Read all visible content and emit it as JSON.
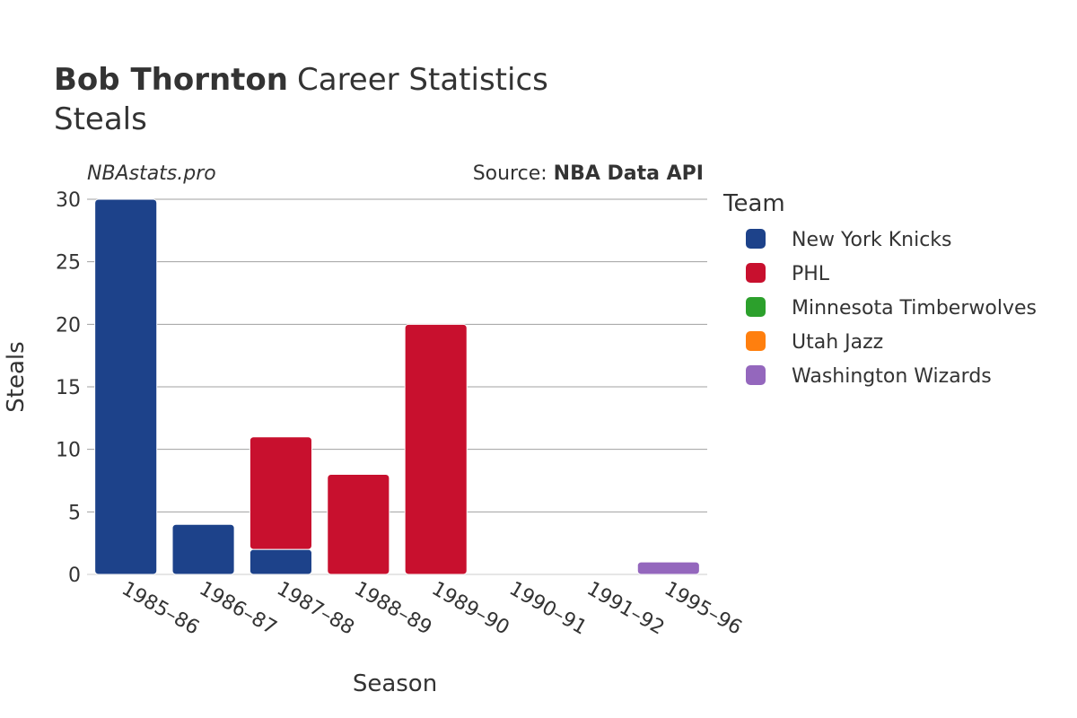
{
  "header": {
    "player_name": "Bob Thornton",
    "title_rest": "Career Statistics",
    "subtitle": "Steals"
  },
  "watermark": "NBAstats.pro",
  "source": {
    "prefix": "Source: ",
    "name": "NBA Data API"
  },
  "legend": {
    "title": "Team"
  },
  "chart_data": {
    "type": "bar",
    "stacked": true,
    "xlabel": "Season",
    "ylabel": "Steals",
    "ylim": [
      0,
      30
    ],
    "yticks": [
      0,
      5,
      10,
      15,
      20,
      25,
      30
    ],
    "grid": true,
    "legend_placement": "right",
    "categories": [
      "1985–86",
      "1986–87",
      "1987–88",
      "1988–89",
      "1989–90",
      "1990–91",
      "1991–92",
      "1995–96"
    ],
    "series": [
      {
        "name": "New York Knicks",
        "color": "#1d428a",
        "values": [
          30,
          4,
          2,
          0,
          0,
          0,
          0,
          0
        ]
      },
      {
        "name": "PHL",
        "color": "#c8102e",
        "values": [
          0,
          0,
          9,
          8,
          20,
          0,
          0,
          0
        ]
      },
      {
        "name": "Minnesota Timberwolves",
        "color": "#2ca02c",
        "values": [
          0,
          0,
          0,
          0,
          0,
          0,
          0,
          0
        ]
      },
      {
        "name": "Utah Jazz",
        "color": "#ff7f0e",
        "values": [
          0,
          0,
          0,
          0,
          0,
          0,
          0,
          0
        ]
      },
      {
        "name": "Washington Wizards",
        "color": "#9467bd",
        "values": [
          0,
          0,
          0,
          0,
          0,
          0,
          0,
          1
        ]
      }
    ]
  }
}
